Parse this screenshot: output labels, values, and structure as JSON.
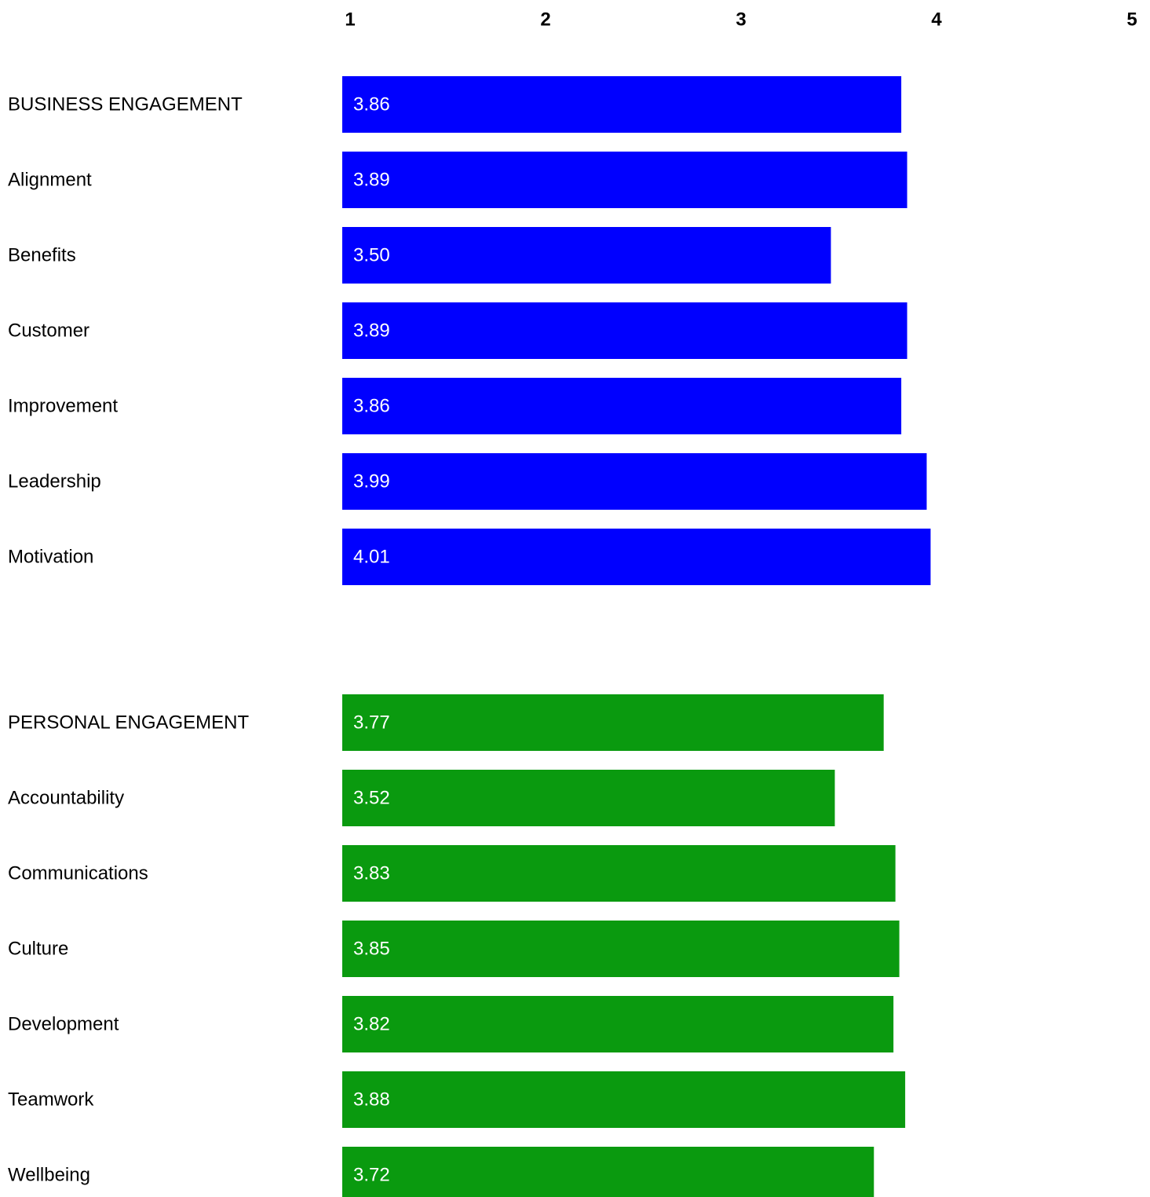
{
  "chart_data": {
    "type": "bar",
    "orientation": "horizontal",
    "xlim": [
      1,
      5
    ],
    "x_ticks": [
      "1",
      "2",
      "3",
      "4",
      "5"
    ],
    "grid": false,
    "groups": [
      {
        "color": "#0000ff",
        "categories": [
          "BUSINESS ENGAGEMENT",
          "Alignment",
          "Benefits",
          "Customer",
          "Improvement",
          "Leadership",
          "Motivation"
        ],
        "values": [
          3.86,
          3.89,
          3.5,
          3.89,
          3.86,
          3.99,
          4.01
        ],
        "value_labels": [
          "3.86",
          "3.89",
          "3.50",
          "3.89",
          "3.86",
          "3.99",
          "4.01"
        ]
      },
      {
        "color": "#0a9a0f",
        "categories": [
          "PERSONAL ENGAGEMENT",
          "Accountability",
          "Communications",
          "Culture",
          "Development",
          "Teamwork",
          "Wellbeing"
        ],
        "values": [
          3.77,
          3.52,
          3.83,
          3.85,
          3.82,
          3.88,
          3.72
        ],
        "value_labels": [
          "3.77",
          "3.52",
          "3.83",
          "3.85",
          "3.82",
          "3.88",
          "3.72"
        ]
      }
    ]
  }
}
